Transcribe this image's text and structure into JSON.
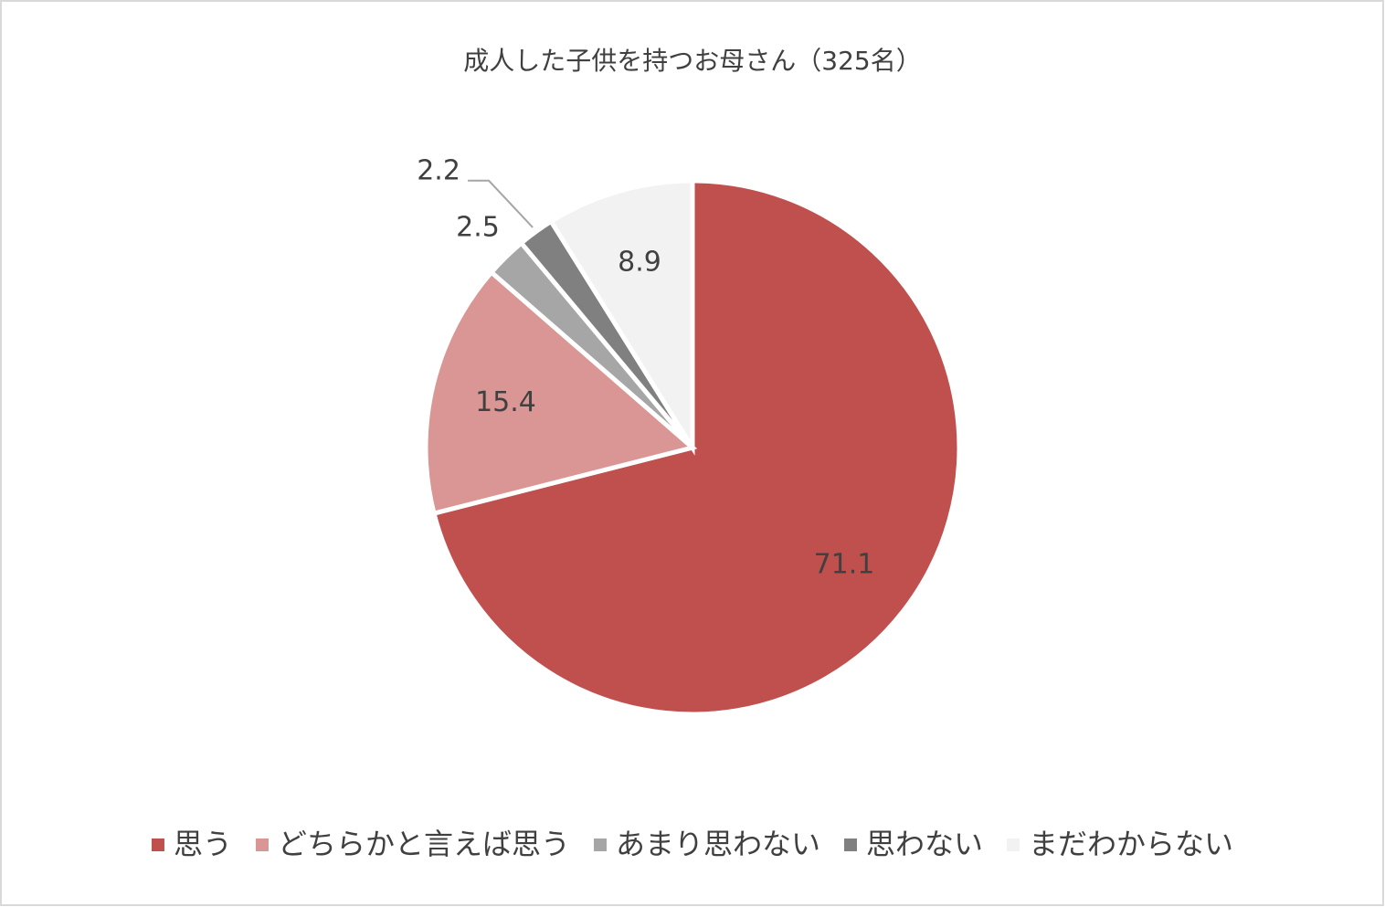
{
  "chart_data": {
    "type": "pie",
    "title": "成人した子供を持つお母さん（325名）",
    "categories": [
      "思う",
      "どちらかと言えば思う",
      "あまり思わない",
      "思わない",
      "まだわからない"
    ],
    "values": [
      71.1,
      15.4,
      2.5,
      2.2,
      8.9
    ],
    "colors": [
      "#c0504d",
      "#d99694",
      "#a6a6a6",
      "#808080",
      "#f2f2f2"
    ],
    "legend": "bottom"
  }
}
